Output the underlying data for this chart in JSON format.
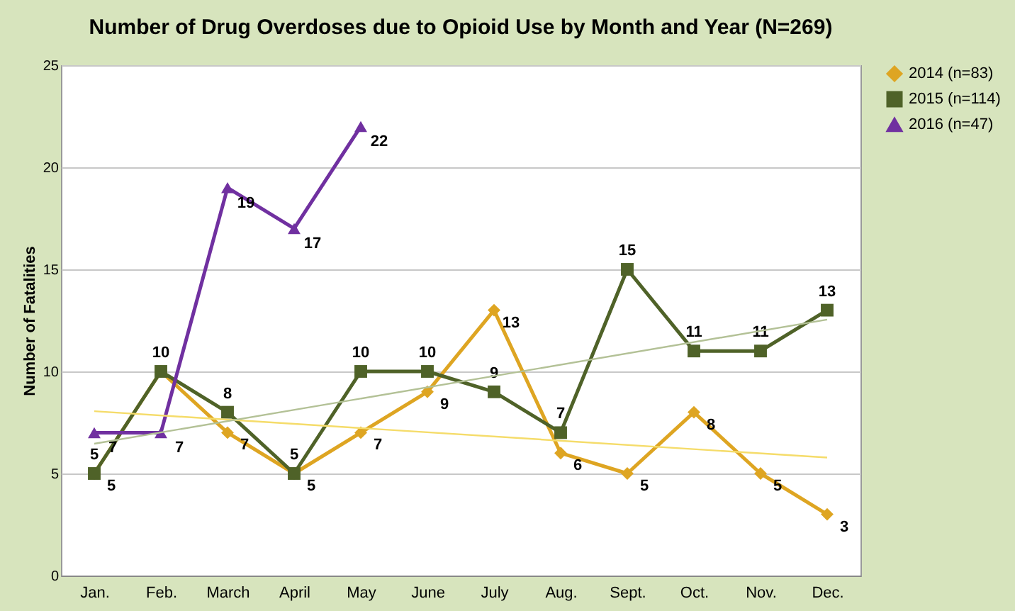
{
  "chart_data": {
    "type": "line",
    "title": "Number of Drug Overdoses due to Opioid Use by Month and Year (N=269)",
    "ylabel": "Number of Fatalities",
    "categories": [
      "Jan.",
      "Feb.",
      "March",
      "April",
      "May",
      "June",
      "July",
      "Aug.",
      "Sept.",
      "Oct.",
      "Nov.",
      "Dec."
    ],
    "series": [
      {
        "name": "2014 (n=83)",
        "color": "#dea522",
        "marker": "diamond",
        "values": [
          5,
          10,
          7,
          5,
          7,
          9,
          13,
          6,
          5,
          8,
          5,
          3
        ],
        "value_labels": [
          "5",
          null,
          "7",
          "5",
          "7",
          "9",
          "13",
          "6",
          "5",
          "8",
          "5",
          "3"
        ]
      },
      {
        "name": "2015 (n=114)",
        "color": "#4f6228",
        "marker": "square",
        "values": [
          5,
          10,
          8,
          5,
          10,
          10,
          9,
          7,
          15,
          11,
          11,
          13
        ]
      },
      {
        "name": "2016 (n=47)",
        "color": "#7030a0",
        "marker": "triangle",
        "values": [
          7,
          7,
          19,
          17,
          22,
          null,
          null,
          null,
          null,
          null,
          null,
          null
        ]
      },
      {
        "type": "line",
        "color": "#f5dc6a",
        "marker": "none",
        "x": [
          "Jan.",
          "Dec."
        ],
        "values": [
          8.05,
          5.78
        ],
        "value_labels": [
          null,
          null
        ]
      },
      {
        "type": "line",
        "color": "#b3c196",
        "marker": "none",
        "x": [
          "Jan.",
          "Dec."
        ],
        "values": [
          6.46,
          12.54
        ],
        "value_labels": [
          null,
          null
        ]
      }
    ],
    "ylim": [
      0,
      25
    ],
    "yticks": [
      0,
      5,
      10,
      15,
      20,
      25
    ],
    "grid": "y",
    "legend": "right",
    "data_labels": true
  }
}
